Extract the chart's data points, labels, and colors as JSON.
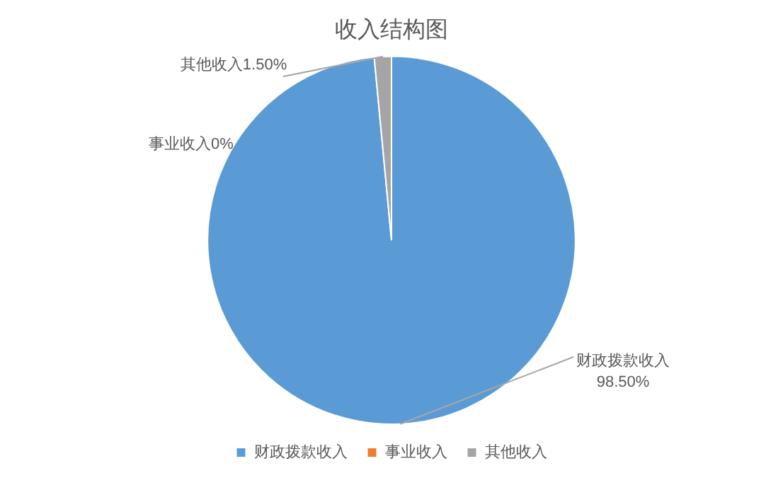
{
  "chart_data": {
    "type": "pie",
    "title": "收入结构图",
    "categories": [
      "财政拨款收入",
      "事业收入",
      "其他收入"
    ],
    "values": [
      98.5,
      0,
      1.5
    ],
    "value_labels": [
      "98.50%",
      "0%",
      "1.50%"
    ],
    "colors": [
      "#5b9bd5",
      "#ed7d31",
      "#a5a5a5"
    ],
    "legend": "bottom"
  }
}
